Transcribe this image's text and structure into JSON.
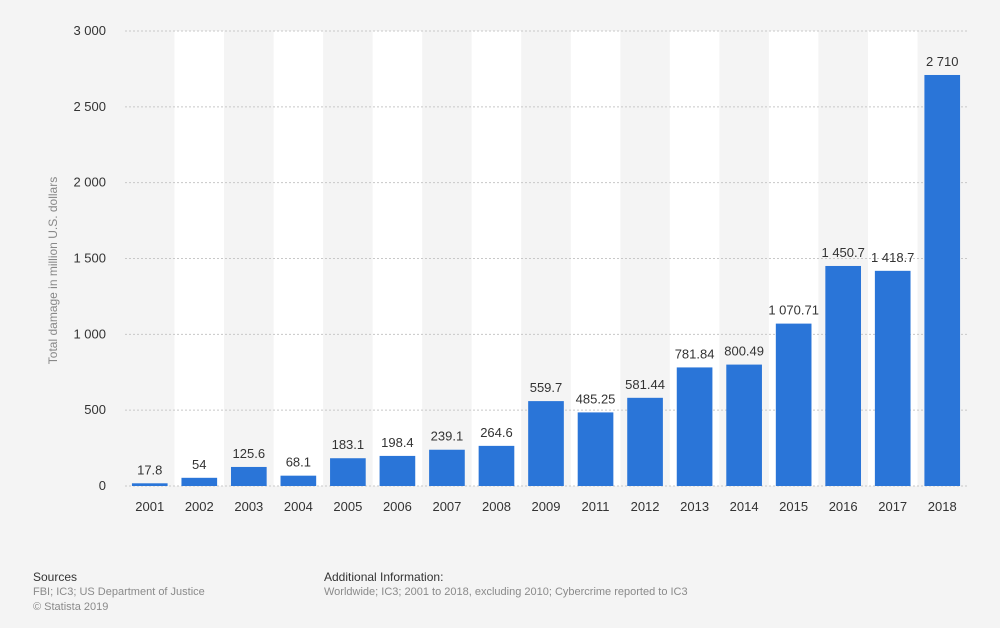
{
  "chart_data": {
    "type": "bar",
    "categories": [
      "2001",
      "2002",
      "2003",
      "2004",
      "2005",
      "2006",
      "2007",
      "2008",
      "2009",
      "2011",
      "2012",
      "2013",
      "2014",
      "2015",
      "2016",
      "2017",
      "2018"
    ],
    "values": [
      17.8,
      54,
      125.6,
      68.1,
      183.1,
      198.4,
      239.1,
      264.6,
      559.7,
      485.25,
      581.44,
      781.84,
      800.49,
      1070.71,
      1450.7,
      1418.7,
      2710
    ],
    "value_labels": [
      "17.8",
      "54",
      "125.6",
      "68.1",
      "183.1",
      "198.4",
      "239.1",
      "264.6",
      "559.7",
      "485.25",
      "581.44",
      "781.84",
      "800.49",
      "1 070.71",
      "1 450.7",
      "1 418.7",
      "2 710"
    ],
    "ylabel": "Total damage in million U.S. dollars",
    "ylim": [
      0,
      3000
    ],
    "yticks": [
      0,
      500,
      1000,
      1500,
      2000,
      2500,
      3000
    ],
    "ytick_labels": [
      "0",
      "500",
      "1 000",
      "1 500",
      "2 000",
      "2 500",
      "3 000"
    ],
    "grid": true,
    "bar_color": "#2a75d8"
  },
  "footer": {
    "sources_title": "Sources",
    "sources_text": "FBI; IC3; US Department of Justice",
    "copyright": "© Statista 2019",
    "info_title": "Additional Information:",
    "info_text": "Worldwide; IC3; 2001 to 2018, excluding 2010; Cybercrime reported to IC3"
  }
}
